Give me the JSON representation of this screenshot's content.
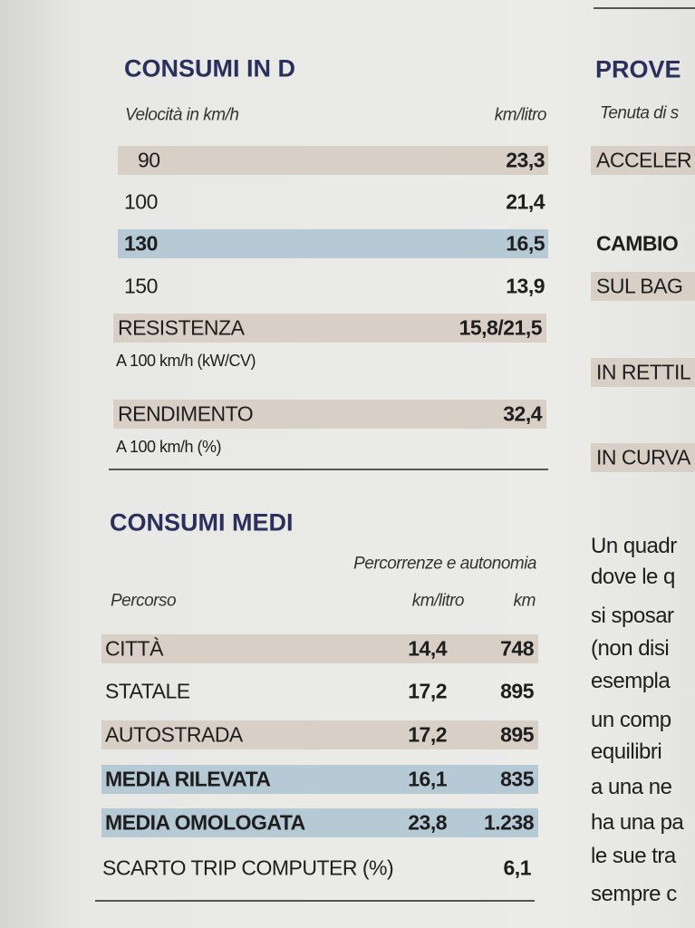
{
  "consumi_in_d": {
    "title": "CONSUMI IN D",
    "header": [
      "Velocità in km/h",
      "km/litro"
    ],
    "rows": [
      [
        "90",
        "23,3"
      ],
      [
        "100",
        "21,4"
      ],
      [
        "130",
        "16,5"
      ],
      [
        "150",
        "13,9"
      ]
    ],
    "extra": [
      {
        "label": "RESISTENZA",
        "value": "15,8/21,5",
        "note": "A 100 km/h (kW/CV)"
      },
      {
        "label": "RENDIMENTO",
        "value": "32,4",
        "note": "A 100 km/h (%)"
      }
    ]
  },
  "consumi_medi": {
    "title": "CONSUMI MEDI",
    "subheader": "Percorrenze e autonomia",
    "header": [
      "Percorso",
      "km/litro",
      "km"
    ],
    "rows": [
      [
        "CITTÀ",
        "14,4",
        "748"
      ],
      [
        "STATALE",
        "17,2",
        "895"
      ],
      [
        "AUTOSTRADA",
        "17,2",
        "895"
      ],
      [
        "MEDIA RILEVATA",
        "16,1",
        "835"
      ],
      [
        "MEDIA OMOLOGATA",
        "23,8",
        "1.238"
      ]
    ],
    "scarto": {
      "label": "SCARTO TRIP COMPUTER (%)",
      "value": "6,1"
    }
  },
  "right_column": {
    "title": "PROVE",
    "subheader": "Tenuta di s",
    "items": [
      "ACCELER",
      "CAMBIO",
      "SUL BAG",
      "IN RETTIL",
      "IN CURVA"
    ],
    "paragraph": [
      "Un quadr",
      "dove le q",
      "si sposar",
      "(non disi",
      "esempla",
      "un comp",
      "equilibri",
      "a una ne",
      "ha una pa",
      "le sue tra",
      "sempre c"
    ]
  }
}
